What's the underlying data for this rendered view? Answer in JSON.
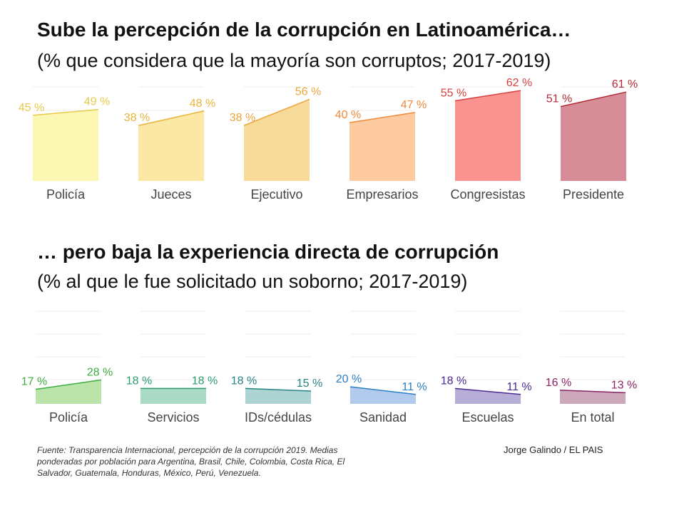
{
  "chart_data": [
    {
      "type": "area",
      "title": "Sube la percepción de la corrupción en Latinoamérica…",
      "subtitle": "(% que considera que la mayoría son corruptos; 2017-2019)",
      "x": [
        2017,
        2019
      ],
      "ylim": [
        0,
        65
      ],
      "unit": "%",
      "series": [
        {
          "name": "Policía",
          "values": [
            45,
            49
          ],
          "color": "#e8c94a",
          "fill": "#fdf7b0"
        },
        {
          "name": "Jueces",
          "values": [
            38,
            48
          ],
          "color": "#e9b43a",
          "fill": "#fbe7a0"
        },
        {
          "name": "Ejecutivo",
          "values": [
            38,
            56
          ],
          "color": "#eca53c",
          "fill": "#f9d994"
        },
        {
          "name": "Empresarios",
          "values": [
            40,
            47
          ],
          "color": "#ee8a3c",
          "fill": "#fdc89a"
        },
        {
          "name": "Congresistas",
          "values": [
            55,
            62
          ],
          "color": "#d8413f",
          "fill": "#fa8d8a"
        },
        {
          "name": "Presidente",
          "values": [
            51,
            61
          ],
          "color": "#b32a34",
          "fill": "#d48792"
        }
      ]
    },
    {
      "type": "area",
      "title": "… pero baja la experiencia directa de corrupción",
      "subtitle": "(% al que le fue solicitado un soborno; 2017-2019)",
      "x": [
        2017,
        2019
      ],
      "ylim": [
        0,
        100
      ],
      "unit": "%",
      "series": [
        {
          "name": "Policía",
          "values": [
            17,
            28
          ],
          "color": "#3cae3f",
          "fill": "#b7e3a6"
        },
        {
          "name": "Servicios",
          "values": [
            18,
            18
          ],
          "color": "#2a9a6c",
          "fill": "#a7d9c4"
        },
        {
          "name": "IDs/cédulas",
          "values": [
            18,
            15
          ],
          "color": "#268383",
          "fill": "#a9d2d0"
        },
        {
          "name": "Sanidad",
          "values": [
            20,
            11
          ],
          "color": "#2c7fc3",
          "fill": "#aec8ec"
        },
        {
          "name": "Escuelas",
          "values": [
            18,
            11
          ],
          "color": "#4c2a92",
          "fill": "#b3aad6"
        },
        {
          "name": "En total",
          "values": [
            16,
            13
          ],
          "color": "#8a2363",
          "fill": "#c9a3b6"
        }
      ]
    }
  ],
  "source": "Fuente: Transparencia Internacional, percepción de la corrupción 2019. Medias ponderadas por población para Argentina, Brasil, Chile, Colombia, Costa Rica, El Salvador, Guatemala, Honduras, México, Perú, Venezuela.",
  "credit": "Jorge Galindo / EL PAIS"
}
